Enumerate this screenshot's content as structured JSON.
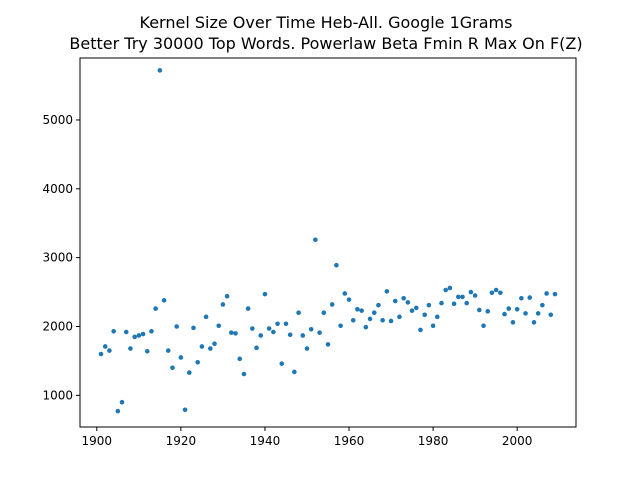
{
  "chart_data": {
    "type": "scatter",
    "title": [
      "Kernel Size Over Time Heb-All. Google 1Grams",
      "Better Try 30000 Top Words. Powerlaw Beta Fmin R Max On F(Z)"
    ],
    "xlabel": "",
    "ylabel": "",
    "xlim": [
      1896,
      2014
    ],
    "ylim": [
      540,
      5900
    ],
    "xticks": [
      1900,
      1920,
      1940,
      1960,
      1980,
      2000
    ],
    "yticks": [
      1000,
      2000,
      3000,
      4000,
      5000
    ],
    "grid": false,
    "marker_color": "#1f77b4",
    "series": [
      {
        "x": [
          1901,
          1902,
          1903,
          1904,
          1905,
          1906,
          1907,
          1908,
          1909,
          1910,
          1911,
          1912,
          1913,
          1914,
          1915,
          1916,
          1917,
          1918,
          1919,
          1920,
          1921,
          1922,
          1923,
          1924,
          1925,
          1926,
          1927,
          1928,
          1929,
          1930,
          1931,
          1932,
          1933,
          1934,
          1935,
          1936,
          1937,
          1938,
          1939,
          1940,
          1941,
          1942,
          1943,
          1944,
          1945,
          1946,
          1947,
          1948,
          1949,
          1950,
          1951,
          1952,
          1953,
          1954,
          1955,
          1956,
          1957,
          1958,
          1959,
          1960,
          1961,
          1962,
          1963,
          1964,
          1965,
          1966,
          1967,
          1968,
          1969,
          1970,
          1971,
          1972,
          1973,
          1974,
          1975,
          1976,
          1977,
          1978,
          1979,
          1980,
          1981,
          1982,
          1983,
          1984,
          1985,
          1986,
          1987,
          1988,
          1989,
          1990,
          1991,
          1992,
          1993,
          1994,
          1995,
          1996,
          1997,
          1998,
          1999,
          2000,
          2001,
          2002,
          2003,
          2004,
          2005,
          2006,
          2007,
          2008,
          2009
        ],
        "y": [
          1600,
          1710,
          1650,
          1930,
          770,
          900,
          1920,
          1680,
          1850,
          1870,
          1890,
          1640,
          1930,
          2260,
          5720,
          2380,
          1650,
          1400,
          2000,
          1550,
          790,
          1330,
          1980,
          1480,
          1710,
          2140,
          1680,
          1750,
          2010,
          2320,
          2440,
          1910,
          1900,
          1530,
          1310,
          2260,
          1970,
          1690,
          1870,
          2470,
          1970,
          1920,
          2040,
          1460,
          2040,
          1880,
          1340,
          2200,
          1870,
          1680,
          1960,
          3260,
          1910,
          2200,
          1740,
          2320,
          2890,
          2010,
          2480,
          2390,
          2090,
          2250,
          2230,
          1990,
          2110,
          2200,
          2310,
          2090,
          2510,
          2080,
          2370,
          2140,
          2410,
          2350,
          2230,
          2270,
          1950,
          2170,
          2310,
          2010,
          2140,
          2340,
          2530,
          2560,
          2330,
          2430,
          2430,
          2340,
          2500,
          2450,
          2240,
          2010,
          2220,
          2490,
          2530,
          2490,
          2180,
          2260,
          2060,
          2250,
          2410,
          2190,
          2420,
          2060,
          2190,
          2310,
          2480,
          2170,
          2470
        ]
      }
    ]
  }
}
